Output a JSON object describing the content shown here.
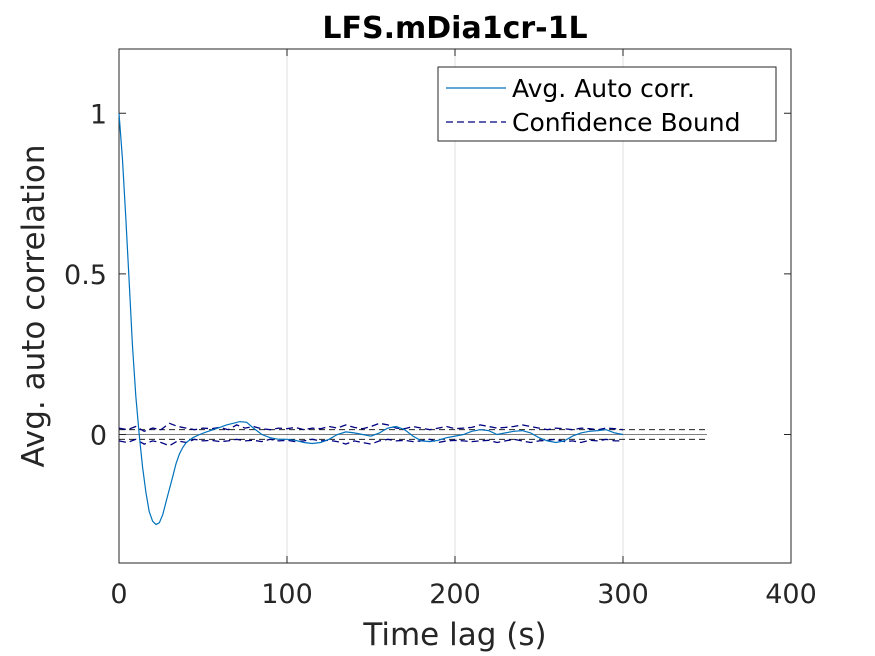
{
  "chart_data": {
    "type": "line",
    "title": "LFS.mDia1cr-1L",
    "xlabel": "Time lag (s)",
    "ylabel": "Avg. auto correlation",
    "xlim": [
      0,
      400
    ],
    "ylim": [
      -0.4,
      1.2
    ],
    "xticks": [
      0,
      100,
      200,
      300,
      400
    ],
    "xtick_labels": [
      "0",
      "100",
      "200",
      "300",
      "400"
    ],
    "yticks": [
      0,
      0.5,
      1
    ],
    "ytick_labels": [
      "0",
      "0.5",
      "1"
    ],
    "grid": "vertical",
    "legend_position": "top-right",
    "series": [
      {
        "name": "Avg. Auto corr.",
        "color": "#0072BD",
        "style": "solid",
        "x": [
          0,
          2,
          4,
          6,
          8,
          10,
          12,
          14,
          16,
          18,
          20,
          22,
          24,
          26,
          28,
          30,
          32,
          34,
          36,
          38,
          40,
          44,
          48,
          52,
          56,
          60,
          64,
          68,
          72,
          76,
          80,
          85,
          90,
          95,
          100,
          105,
          110,
          115,
          120,
          125,
          130,
          135,
          140,
          145,
          150,
          155,
          160,
          165,
          170,
          175,
          180,
          185,
          190,
          195,
          200,
          205,
          210,
          215,
          220,
          225,
          230,
          235,
          240,
          245,
          250,
          255,
          260,
          265,
          270,
          275,
          280,
          285,
          290,
          295,
          300
        ],
        "y": [
          1.0,
          0.86,
          0.68,
          0.48,
          0.28,
          0.12,
          0.0,
          -0.1,
          -0.18,
          -0.24,
          -0.27,
          -0.28,
          -0.275,
          -0.25,
          -0.21,
          -0.17,
          -0.13,
          -0.09,
          -0.06,
          -0.04,
          -0.025,
          -0.01,
          0.0,
          0.008,
          0.015,
          0.022,
          0.03,
          0.035,
          0.04,
          0.038,
          0.02,
          0.0,
          -0.01,
          -0.015,
          -0.015,
          -0.018,
          -0.025,
          -0.028,
          -0.025,
          -0.015,
          0.0,
          0.008,
          0.005,
          0.0,
          -0.005,
          0.005,
          0.02,
          0.025,
          0.015,
          -0.005,
          -0.02,
          -0.022,
          -0.018,
          -0.01,
          -0.005,
          0.0,
          0.01,
          0.015,
          0.012,
          0.0,
          0.005,
          0.01,
          0.012,
          0.005,
          -0.01,
          -0.02,
          -0.025,
          -0.02,
          -0.005,
          0.005,
          0.01,
          0.012,
          0.015,
          0.005,
          0.0
        ]
      },
      {
        "name": "Confidence Bound",
        "color": "#000080",
        "style": "dashed",
        "x": [
          0,
          5,
          10,
          15,
          20,
          25,
          30,
          35,
          40,
          45,
          50,
          55,
          60,
          65,
          70,
          75,
          80,
          85,
          90,
          95,
          100,
          105,
          110,
          115,
          120,
          125,
          130,
          135,
          140,
          145,
          150,
          155,
          160,
          165,
          170,
          175,
          180,
          185,
          190,
          195,
          200,
          205,
          210,
          215,
          220,
          225,
          230,
          235,
          240,
          245,
          250,
          255,
          260,
          265,
          270,
          275,
          280,
          285,
          290,
          295,
          300
        ],
        "upper": [
          0.02,
          0.015,
          0.025,
          0.01,
          0.02,
          0.015,
          0.035,
          0.025,
          0.02,
          0.015,
          0.02,
          0.018,
          0.022,
          0.015,
          0.03,
          0.02,
          0.025,
          0.018,
          0.015,
          0.02,
          0.018,
          0.022,
          0.015,
          0.02,
          0.018,
          0.025,
          0.02,
          0.03,
          0.022,
          0.018,
          0.025,
          0.035,
          0.03,
          0.02,
          0.018,
          0.025,
          0.02,
          0.015,
          0.02,
          0.025,
          0.018,
          0.02,
          0.022,
          0.03,
          0.025,
          0.02,
          0.022,
          0.025,
          0.03,
          0.025,
          0.02,
          0.015,
          0.02,
          0.018,
          0.015,
          0.02,
          0.018,
          0.015,
          0.02,
          0.018,
          0.015
        ],
        "lower": [
          -0.02,
          -0.025,
          -0.015,
          -0.03,
          -0.02,
          -0.025,
          -0.035,
          -0.02,
          -0.025,
          -0.015,
          -0.02,
          -0.018,
          -0.022,
          -0.02,
          -0.015,
          -0.02,
          -0.018,
          -0.022,
          -0.015,
          -0.02,
          -0.018,
          -0.022,
          -0.02,
          -0.015,
          -0.02,
          -0.018,
          -0.022,
          -0.03,
          -0.02,
          -0.025,
          -0.03,
          -0.02,
          -0.015,
          -0.02,
          -0.018,
          -0.022,
          -0.02,
          -0.015,
          -0.025,
          -0.02,
          -0.018,
          -0.02,
          -0.022,
          -0.02,
          -0.018,
          -0.025,
          -0.02,
          -0.015,
          -0.02,
          -0.025,
          -0.02,
          -0.018,
          -0.015,
          -0.022,
          -0.02,
          -0.025,
          -0.018,
          -0.02,
          -0.015,
          -0.02,
          -0.02
        ]
      }
    ],
    "reference_lines": {
      "color": "#000000",
      "x_end": 350,
      "upper": 0.015,
      "lower": -0.015,
      "zero": 0.0
    }
  }
}
